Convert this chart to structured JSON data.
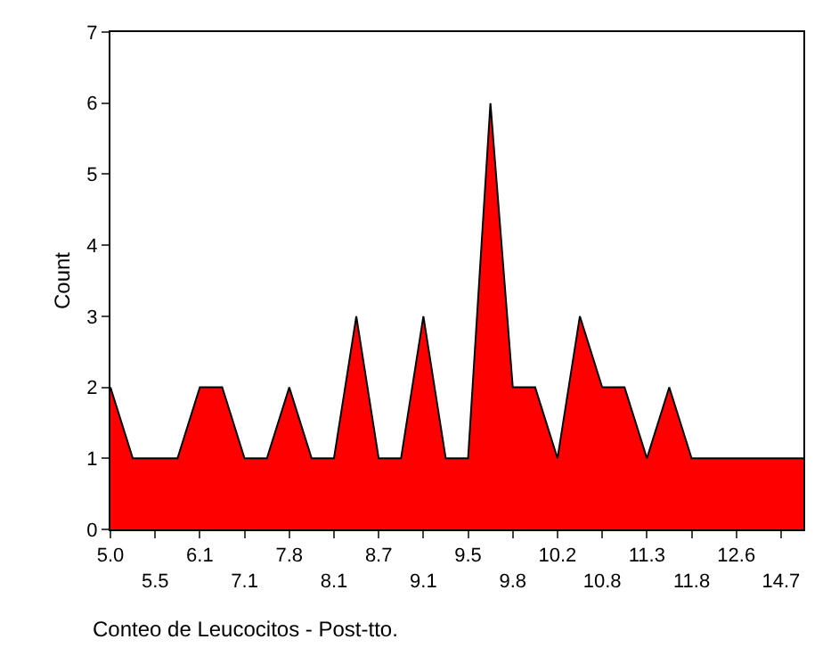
{
  "chart_data": {
    "type": "area",
    "xlabel": "Conteo de Leucocitos - Post-tto.",
    "ylabel": "Count",
    "categories": [
      "5.0",
      null,
      "5.5",
      null,
      "6.1",
      null,
      "7.1",
      null,
      "7.8",
      null,
      "8.1",
      null,
      "8.7",
      null,
      "9.1",
      null,
      "9.5",
      null,
      "9.8",
      null,
      "10.2",
      null,
      "10.8",
      null,
      "11.3",
      null,
      "11.8",
      null,
      "12.6",
      null,
      "14.7",
      null
    ],
    "series": [
      {
        "color": "#ff0000",
        "values": [
          2,
          1,
          1,
          1,
          2,
          2,
          1,
          1,
          2,
          1,
          1,
          3,
          1,
          1,
          3,
          1,
          1,
          6,
          2,
          2,
          1,
          3,
          2,
          2,
          1,
          2,
          1,
          1,
          1,
          1,
          1,
          1
        ]
      }
    ],
    "ylim": [
      0,
      7
    ],
    "yticks": [
      0,
      1,
      2,
      3,
      4,
      5,
      6,
      7
    ],
    "marker": "none",
    "line_style": "solid"
  }
}
